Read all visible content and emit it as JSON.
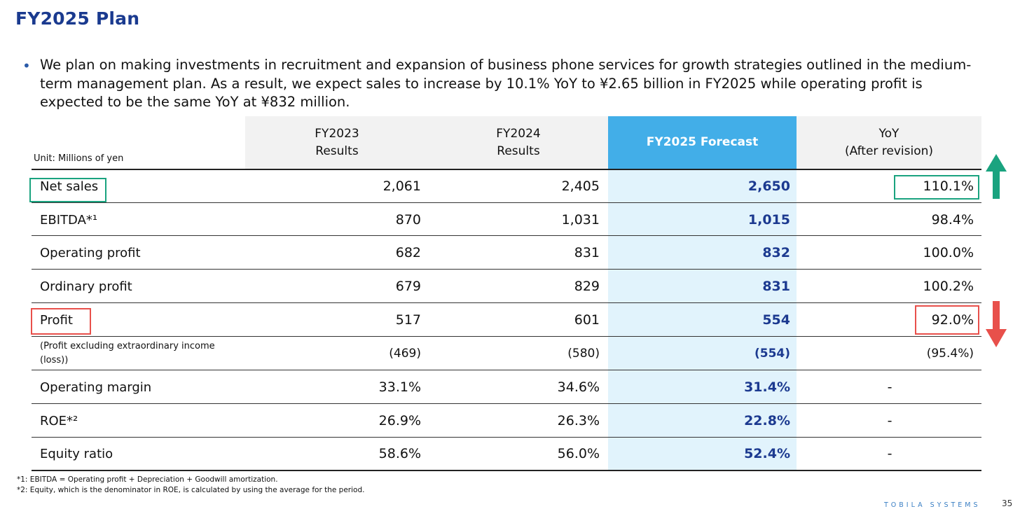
{
  "title": "FY2025 Plan",
  "bullet": "We plan on making investments in recruitment and expansion of business phone services for growth strategies outlined in the medium-term management plan. As a result, we expect sales to increase by 10.1% YoY to ¥2.65 billion in FY2025 while operating profit is expected to be the same YoY at ¥832 million.",
  "table": {
    "unit_label": "Unit: Millions of yen",
    "headers": [
      "FY2023\nResults",
      "FY2024\nResults",
      "FY2025 Forecast",
      "YoY\n(After revision)"
    ],
    "rows": [
      {
        "label": "Net sales",
        "fy2023": "2,061",
        "fy2024": "2,405",
        "fy2025": "2,650",
        "yoy": "110.1%"
      },
      {
        "label": "EBITDA*¹",
        "fy2023": "870",
        "fy2024": "1,031",
        "fy2025": "1,015",
        "yoy": "98.4%"
      },
      {
        "label": "Operating profit",
        "fy2023": "682",
        "fy2024": "831",
        "fy2025": "832",
        "yoy": "100.0%"
      },
      {
        "label": "Ordinary profit",
        "fy2023": "679",
        "fy2024": "829",
        "fy2025": "831",
        "yoy": "100.2%"
      },
      {
        "label": "Profit",
        "fy2023": "517",
        "fy2024": "601",
        "fy2025": "554",
        "yoy": "92.0%"
      },
      {
        "label": "(Profit excluding extraordinary income\n(loss))",
        "fy2023": "(469)",
        "fy2024": "(580)",
        "fy2025": "(554)",
        "yoy": "(95.4%)"
      },
      {
        "label": "Operating margin",
        "fy2023": "33.1%",
        "fy2024": "34.6%",
        "fy2025": "31.4%",
        "yoy": "-"
      },
      {
        "label": "ROE*²",
        "fy2023": "26.9%",
        "fy2024": "26.3%",
        "fy2025": "22.8%",
        "yoy": "-"
      },
      {
        "label": "Equity ratio",
        "fy2023": "58.6%",
        "fy2024": "56.0%",
        "fy2025": "52.4%",
        "yoy": "-"
      }
    ]
  },
  "indicators": {
    "up_arrow_color": "#1aa37f",
    "down_arrow_color": "#e8504b",
    "up_icon": "arrow-up-icon",
    "down_icon": "arrow-down-icon"
  },
  "footnotes": [
    "*1: EBITDA = Operating profit + Depreciation + Goodwill amortization.",
    "*2: Equity, which is the denominator in ROE, is calculated by using the average for the period."
  ],
  "brand": "TOBILA SYSTEMS",
  "page_number": "35"
}
